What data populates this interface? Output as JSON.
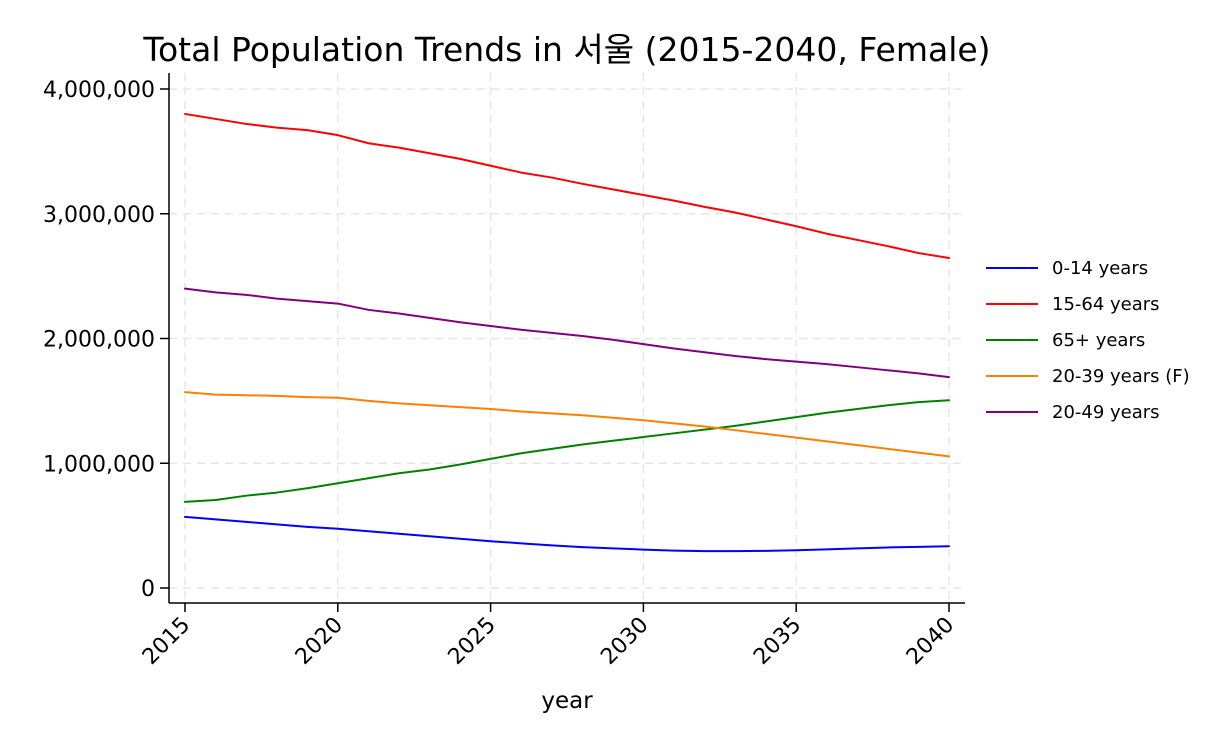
{
  "chart_data": {
    "type": "line",
    "title": "Total Population Trends in 서울 (2015-2040, Female)",
    "xlabel": "year",
    "ylabel": "",
    "x": [
      2015,
      2016,
      2017,
      2018,
      2019,
      2020,
      2021,
      2022,
      2023,
      2024,
      2025,
      2026,
      2027,
      2028,
      2029,
      2030,
      2031,
      2032,
      2033,
      2034,
      2035,
      2036,
      2037,
      2038,
      2039,
      2040
    ],
    "xlim": [
      2015,
      2040
    ],
    "ylim": [
      0,
      4000000
    ],
    "xticks": [
      2015,
      2020,
      2025,
      2030,
      2035,
      2040
    ],
    "xtick_labels": [
      "2015",
      "2020",
      "2025",
      "2030",
      "2035",
      "2040"
    ],
    "yticks": [
      0,
      1000000,
      2000000,
      3000000,
      4000000
    ],
    "ytick_labels": [
      "0",
      "1,000,000",
      "2,000,000",
      "3,000,000",
      "4,000,000"
    ],
    "grid": true,
    "legend_position": "right",
    "series": [
      {
        "name": "0-14 years",
        "color": "#0000ff",
        "values": [
          570000,
          550000,
          530000,
          510000,
          490000,
          475000,
          455000,
          435000,
          415000,
          395000,
          375000,
          358000,
          342000,
          328000,
          318000,
          308000,
          300000,
          296000,
          296000,
          298000,
          303000,
          310000,
          318000,
          325000,
          330000,
          335000
        ]
      },
      {
        "name": "15-64 years",
        "color": "#ff0000",
        "values": [
          3800000,
          3760000,
          3720000,
          3690000,
          3670000,
          3630000,
          3565000,
          3530000,
          3485000,
          3440000,
          3385000,
          3330000,
          3290000,
          3240000,
          3195000,
          3150000,
          3105000,
          3055000,
          3010000,
          2955000,
          2900000,
          2840000,
          2790000,
          2740000,
          2685000,
          2645000
        ]
      },
      {
        "name": "65+ years",
        "color": "#008000",
        "values": [
          690000,
          705000,
          740000,
          765000,
          800000,
          840000,
          880000,
          920000,
          950000,
          990000,
          1035000,
          1080000,
          1115000,
          1150000,
          1180000,
          1210000,
          1240000,
          1270000,
          1300000,
          1335000,
          1370000,
          1405000,
          1435000,
          1465000,
          1490000,
          1505000
        ]
      },
      {
        "name": "20-39 years (F)",
        "color": "#ff8000",
        "values": [
          1570000,
          1550000,
          1545000,
          1540000,
          1530000,
          1525000,
          1500000,
          1480000,
          1465000,
          1450000,
          1435000,
          1415000,
          1400000,
          1385000,
          1365000,
          1345000,
          1320000,
          1295000,
          1265000,
          1235000,
          1205000,
          1175000,
          1145000,
          1115000,
          1085000,
          1055000
        ]
      },
      {
        "name": "20-49 years",
        "color": "#800080",
        "values": [
          2400000,
          2370000,
          2350000,
          2320000,
          2300000,
          2280000,
          2230000,
          2200000,
          2165000,
          2130000,
          2100000,
          2070000,
          2045000,
          2020000,
          1990000,
          1955000,
          1920000,
          1890000,
          1860000,
          1835000,
          1815000,
          1795000,
          1770000,
          1745000,
          1720000,
          1690000
        ]
      }
    ]
  }
}
